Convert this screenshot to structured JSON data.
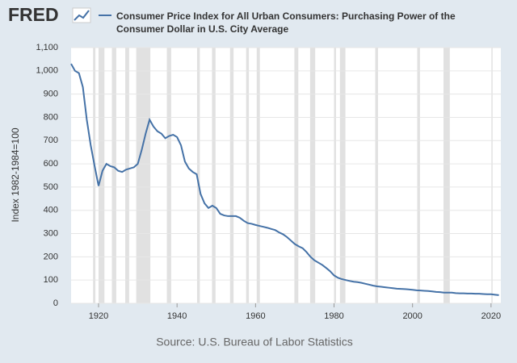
{
  "logo": "FRED",
  "chart_data": {
    "type": "line",
    "title": "Consumer Price Index for All Urban Consumers: Purchasing Power of the Consumer Dollar in U.S. City Average",
    "y_label": "Index 1982-1984=100",
    "source": "Source: U.S. Bureau of Labor Statistics",
    "xlim": [
      1913,
      2022.5
    ],
    "xticks": [
      1920,
      1940,
      1960,
      1980,
      2000,
      2020
    ],
    "ylim": [
      0,
      1100
    ],
    "yticks": [
      0,
      100,
      200,
      300,
      400,
      500,
      600,
      700,
      800,
      900,
      {
        "value": 1000,
        "label": "1,000"
      },
      {
        "value": 1100,
        "label": "1,100"
      }
    ],
    "grid": true,
    "recession_color": "#e1e1e1",
    "recessions": [
      [
        1918.6,
        1919.2
      ],
      [
        1920.0,
        1921.5
      ],
      [
        1923.4,
        1924.5
      ],
      [
        1926.8,
        1927.8
      ],
      [
        1929.6,
        1933.2
      ],
      [
        1937.4,
        1938.5
      ],
      [
        1945.1,
        1945.8
      ],
      [
        1948.9,
        1949.8
      ],
      [
        1953.5,
        1954.4
      ],
      [
        1957.6,
        1958.3
      ],
      [
        1960.3,
        1961.1
      ],
      [
        1969.9,
        1970.9
      ],
      [
        1973.9,
        1975.2
      ],
      [
        1980.0,
        1980.5
      ],
      [
        1981.5,
        1982.9
      ],
      [
        1990.5,
        1991.2
      ],
      [
        2001.2,
        2001.9
      ],
      [
        2007.9,
        2009.5
      ],
      [
        2020.1,
        2020.4
      ]
    ],
    "x": [
      1913,
      1914,
      1915,
      1916,
      1917,
      1918,
      1919,
      1920,
      1921,
      1922,
      1923,
      1924,
      1925,
      1926,
      1927,
      1928,
      1929,
      1930,
      1931,
      1932,
      1933,
      1934,
      1935,
      1936,
      1937,
      1938,
      1939,
      1940,
      1941,
      1942,
      1943,
      1944,
      1945,
      1946,
      1947,
      1948,
      1949,
      1950,
      1951,
      1952,
      1953,
      1954,
      1955,
      1956,
      1957,
      1958,
      1959,
      1960,
      1961,
      1962,
      1963,
      1964,
      1965,
      1966,
      1967,
      1968,
      1969,
      1970,
      1971,
      1972,
      1973,
      1974,
      1975,
      1976,
      1977,
      1978,
      1979,
      1980,
      1981,
      1982,
      1983,
      1984,
      1985,
      1986,
      1987,
      1988,
      1989,
      1990,
      1991,
      1992,
      1993,
      1994,
      1995,
      1996,
      1997,
      1998,
      1999,
      2000,
      2001,
      2002,
      2003,
      2004,
      2005,
      2006,
      2007,
      2008,
      2009,
      2010,
      2011,
      2012,
      2013,
      2014,
      2015,
      2016,
      2017,
      2018,
      2019,
      2020,
      2021,
      2022
    ],
    "series": [
      {
        "name": "Consumer Price Index for All Urban Consumers: Purchasing Power of the Consumer Dollar in U.S. City Average",
        "color": "#4572a7",
        "values": [
          1030,
          1000,
          990,
          930,
          790,
          680,
          590,
          505,
          570,
          600,
          590,
          585,
          570,
          565,
          575,
          580,
          585,
          600,
          660,
          730,
          790,
          760,
          740,
          730,
          710,
          720,
          725,
          715,
          680,
          610,
          580,
          565,
          555,
          470,
          430,
          410,
          420,
          410,
          385,
          378,
          375,
          375,
          375,
          368,
          355,
          345,
          342,
          337,
          333,
          329,
          325,
          320,
          315,
          305,
          297,
          285,
          270,
          255,
          245,
          237,
          220,
          200,
          185,
          175,
          165,
          152,
          138,
          120,
          110,
          104,
          100,
          96,
          93,
          91,
          88,
          84,
          80,
          76,
          73,
          71,
          69,
          67,
          65,
          63,
          62,
          61,
          60,
          58,
          56,
          55,
          54,
          53,
          51,
          49,
          48,
          46,
          46,
          46,
          44,
          43,
          43,
          42,
          42,
          41,
          41,
          40,
          39,
          39,
          37,
          35
        ]
      }
    ]
  }
}
